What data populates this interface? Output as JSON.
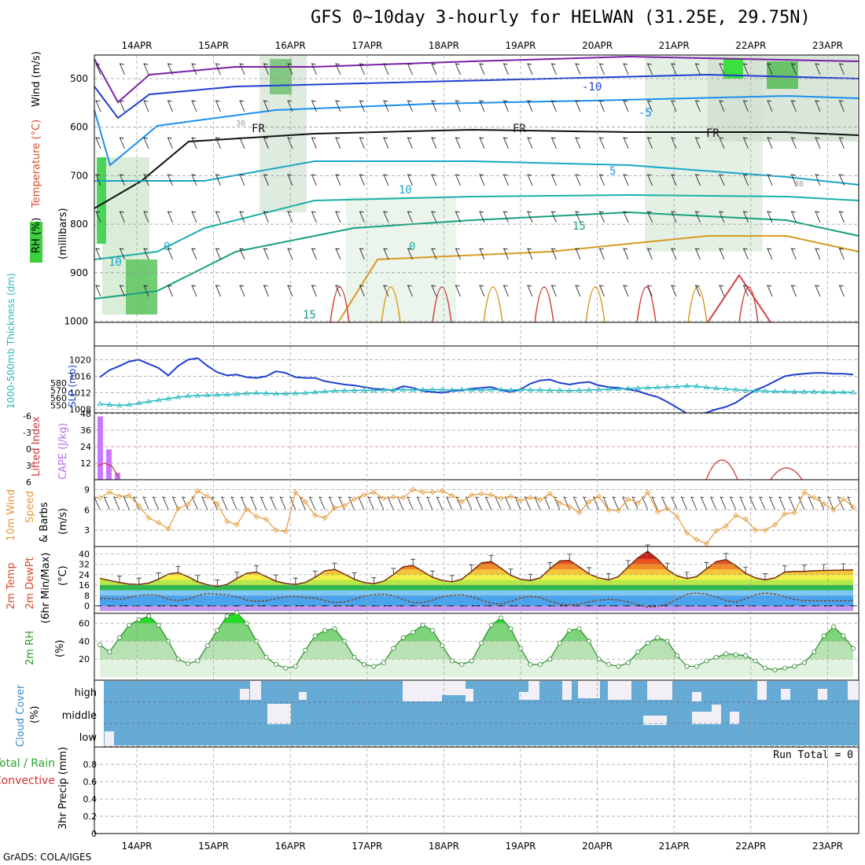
{
  "title": "GFS 0~10day 3-hourly for HELWAN (31.25E, 29.75N)",
  "credit": "GrADS: COLA/IGES",
  "dates": [
    "14APR",
    "15APR",
    "16APR",
    "17APR",
    "18APR",
    "19APR",
    "20APR",
    "21APR",
    "22APR",
    "23APR"
  ],
  "chart_data": [
    {
      "type": "heatmap",
      "title": "Wind / Temperature / RH vs pressure",
      "ylabel_parts": [
        "RH (%)",
        "Temperature (°C)",
        "Wind (m/s)"
      ],
      "ylabel2": "(millibars)",
      "y_ticks": [
        500,
        600,
        700,
        800,
        900,
        1000
      ],
      "ylim": [
        1000,
        450
      ],
      "contour_labels": [
        "-10",
        "-5",
        "FR",
        "FR",
        "FR",
        "5",
        "10",
        "15",
        "0",
        "0",
        "10",
        "15",
        "30",
        "30"
      ],
      "grid": true
    },
    {
      "type": "line",
      "ylabel_left": "1000-500mb Thickness (dm)",
      "ylabel_right": "SLP (mb)",
      "left_ticks": [
        550,
        560,
        570,
        580
      ],
      "right_ticks": [
        1008,
        1012,
        1016,
        1020
      ],
      "series": [
        {
          "name": "SLP (mb)",
          "color": "#1f3fd0",
          "values": [
            1015.8,
            1017.5,
            1018.5,
            1019.6,
            1020.0,
            1019.0,
            1018.0,
            1016.2,
            1018.5,
            1020.0,
            1020.4,
            1018.5,
            1017.0,
            1016.2,
            1016.4,
            1015.8,
            1015.6,
            1016.0,
            1017.2,
            1016.8,
            1015.8,
            1015.6,
            1015.6,
            1014.8,
            1014.4,
            1014.0,
            1013.8,
            1013.4,
            1013.0,
            1012.8,
            1012.6,
            1013.6,
            1013.2,
            1012.4,
            1012.2,
            1012.0,
            1012.4,
            1012.6,
            1013.0,
            1013.2,
            1013.4,
            1012.6,
            1012.2,
            1012.8,
            1014.2,
            1015.0,
            1015.2,
            1014.4,
            1014.0,
            1014.4,
            1014.6,
            1013.8,
            1013.4,
            1013.2,
            1012.8,
            1012.4,
            1011.6,
            1011.0,
            1009.8,
            1008.4,
            1007.0,
            1006.8,
            1007.2,
            1008.0,
            1008.6,
            1009.6,
            1011.2,
            1012.6,
            1013.6,
            1014.8,
            1016.0,
            1016.4,
            1016.6,
            1016.8,
            1016.8,
            1016.6,
            1016.6,
            1016.4
          ]
        },
        {
          "name": "1000-500mb Thickness (dm)",
          "color": "#20b8c0",
          "values": [
            552.0,
            551.0,
            550.0,
            551.0,
            553.0,
            555.0,
            557.0,
            559.0,
            561.0,
            562.5,
            563.0,
            563.5,
            564.0,
            564.5,
            565.0,
            566.0,
            566.5,
            566.0,
            565.5,
            565.5,
            566.0,
            566.5,
            567.5,
            568.5,
            569.5,
            569.5,
            570.0,
            570.0,
            570.0,
            570.5,
            570.5,
            571.0,
            570.5,
            571.0,
            571.0,
            571.0,
            570.5,
            571.0,
            570.5,
            570.5,
            571.0,
            571.0,
            570.5,
            571.0,
            570.5,
            570.5,
            570.0,
            570.0,
            569.5,
            570.0,
            570.5,
            571.0,
            571.5,
            572.0,
            572.5,
            573.0,
            573.5,
            574.0,
            574.5,
            575.0,
            576.0,
            575.5,
            574.0,
            573.0,
            572.0,
            571.0,
            570.0,
            569.5,
            569.0,
            568.5,
            568.5,
            568.0,
            568.0,
            568.0,
            567.8,
            567.6,
            567.6,
            567.5
          ]
        }
      ],
      "grid": true
    },
    {
      "type": "bar",
      "ylabel_left": "Lifted Index",
      "ylabel_right": "CAPE (J/kg)",
      "left_ticks": [
        "-6",
        "-3",
        "0",
        "3",
        "6"
      ],
      "right_ticks": [
        12,
        24,
        36,
        48
      ],
      "series": [
        {
          "name": "CAPE (J/kg)",
          "color": "#cc77ff",
          "values": [
            46,
            22,
            5
          ]
        },
        {
          "name": "Lifted Index",
          "color": "#d03030",
          "values": [
            3.5,
            3.0,
            3.5,
            5.5
          ]
        }
      ],
      "grid": true
    },
    {
      "type": "line",
      "ylabel": [
        "10m Wind",
        "Speed",
        "& Barbs",
        "(m/s)"
      ],
      "y_ticks": [
        3,
        6,
        9
      ],
      "ylim": [
        0,
        9.6
      ],
      "series": [
        {
          "name": "Speed",
          "color": "#e59a3a",
          "values": [
            7.8,
            8.6,
            8.0,
            8.1,
            6.6,
            4.8,
            4.1,
            3.2,
            6.2,
            6.8,
            8.8,
            8.0,
            6.9,
            4.3,
            3.8,
            6.1,
            5.0,
            4.6,
            3.0,
            2.8,
            8.6,
            7.2,
            5.2,
            4.8,
            6.3,
            6.6,
            7.6,
            8.2,
            8.6,
            7.7,
            7.9,
            7.8,
            9.0,
            8.6,
            8.6,
            8.8,
            8.1,
            7.2,
            8.2,
            8.4,
            8.2,
            7.7,
            8.0,
            7.4,
            7.8,
            7.5,
            8.4,
            7.0,
            6.5,
            5.6,
            7.2,
            8.0,
            6.0,
            5.9,
            7.6,
            7.0,
            8.6,
            5.7,
            6.2,
            5.0,
            2.6,
            1.6,
            1.0,
            2.9,
            3.6,
            5.2,
            4.6,
            3.0,
            3.0,
            3.8,
            5.4,
            5.6,
            8.6,
            7.8,
            6.9,
            6.0,
            7.6,
            6.4
          ]
        }
      ],
      "grid": true
    },
    {
      "type": "area",
      "ylabel": [
        "2m Temp",
        "2m DewPt",
        "(6hr Min/Max)",
        "(°C)"
      ],
      "y_ticks": [
        0,
        8,
        16,
        24,
        32,
        40
      ],
      "ylim": [
        -2,
        44
      ],
      "series": [
        {
          "name": "2m Temp",
          "color": "#7a2a10",
          "values": [
            21.2,
            19.5,
            18.0,
            16.8,
            16.5,
            17.5,
            20.5,
            24.5,
            25.5,
            22.5,
            18.5,
            16.2,
            15.0,
            16.5,
            21.0,
            25.0,
            26.0,
            22.5,
            19.0,
            17.2,
            16.5,
            18.0,
            22.0,
            27.0,
            28.0,
            24.5,
            20.5,
            18.0,
            17.0,
            19.0,
            24.0,
            30.0,
            31.0,
            26.5,
            22.0,
            19.5,
            18.5,
            20.5,
            26.5,
            33.0,
            34.0,
            29.0,
            23.5,
            20.5,
            19.5,
            21.5,
            28.5,
            34.5,
            35.0,
            30.0,
            24.5,
            21.5,
            20.0,
            22.5,
            30.0,
            37.0,
            42.0,
            36.0,
            28.0,
            23.0,
            21.0,
            22.5,
            28.5,
            34.0,
            35.5,
            31.0,
            25.0,
            21.5,
            20.0,
            21.5,
            26.0,
            26.5,
            26.5,
            27.0,
            27.2,
            27.4,
            27.5,
            27.6
          ]
        },
        {
          "name": "2m DewPt",
          "color": "#7a4a2a",
          "values": [
            6.0,
            5.5,
            5.0,
            6.5,
            8.0,
            8.5,
            8.0,
            5.0,
            4.0,
            5.0,
            8.0,
            9.5,
            9.0,
            8.5,
            7.0,
            4.5,
            3.5,
            4.0,
            5.5,
            7.0,
            7.5,
            6.5,
            6.0,
            4.0,
            2.5,
            3.0,
            5.0,
            7.5,
            8.5,
            9.0,
            8.0,
            5.0,
            2.5,
            2.5,
            4.5,
            7.0,
            8.0,
            8.5,
            7.0,
            4.5,
            2.0,
            1.5,
            3.5,
            6.0,
            7.5,
            6.5,
            3.5,
            1.5,
            0.5,
            1.5,
            3.0,
            4.5,
            5.0,
            4.5,
            3.0,
            1.0,
            -1.0,
            -0.5,
            1.5,
            5.0,
            9.0,
            10.0,
            9.0,
            7.0,
            4.0,
            3.0,
            5.5,
            8.5,
            10.0,
            9.0,
            7.0,
            5.0,
            4.0,
            4.0,
            4.0,
            4.0,
            4.0,
            4.0
          ]
        }
      ],
      "grid": true
    },
    {
      "type": "area",
      "ylabel": [
        "2m RH",
        "(%)"
      ],
      "y_ticks": [
        20,
        40,
        60
      ],
      "ylim": [
        0,
        75
      ],
      "series": [
        {
          "name": "2m RH",
          "color": "#2a8a2a",
          "values": [
            36,
            28,
            44,
            58,
            64,
            68,
            58,
            40,
            20,
            15,
            18,
            35,
            52,
            68,
            72,
            60,
            40,
            22,
            14,
            10,
            12,
            30,
            46,
            52,
            54,
            40,
            22,
            14,
            12,
            16,
            32,
            44,
            50,
            58,
            52,
            35,
            18,
            14,
            18,
            38,
            58,
            66,
            54,
            32,
            14,
            14,
            20,
            38,
            52,
            54,
            40,
            20,
            14,
            12,
            16,
            28,
            38,
            44,
            40,
            24,
            12,
            12,
            18,
            22,
            26,
            25,
            24,
            18,
            10,
            8,
            10,
            12,
            16,
            28,
            46,
            56,
            46,
            32
          ]
        }
      ],
      "grid": true
    },
    {
      "type": "heatmap",
      "ylabel": [
        "Cloud Cover",
        "(%)"
      ],
      "categories": [
        "high",
        "middle",
        "low"
      ],
      "colors": {
        "background": "#66aad6",
        "clear": "#f2eff6"
      },
      "grid": true
    },
    {
      "type": "bar",
      "ylabel": [
        "3hr Precip (mm)"
      ],
      "legend": [
        "Total / Rain",
        "Convective"
      ],
      "run_total": "Run Total = 0",
      "y_ticks": [
        "0",
        "0.2",
        "0.4",
        "0.6",
        "0.8"
      ],
      "ylim": [
        0,
        1
      ],
      "series": [],
      "grid": true
    }
  ]
}
